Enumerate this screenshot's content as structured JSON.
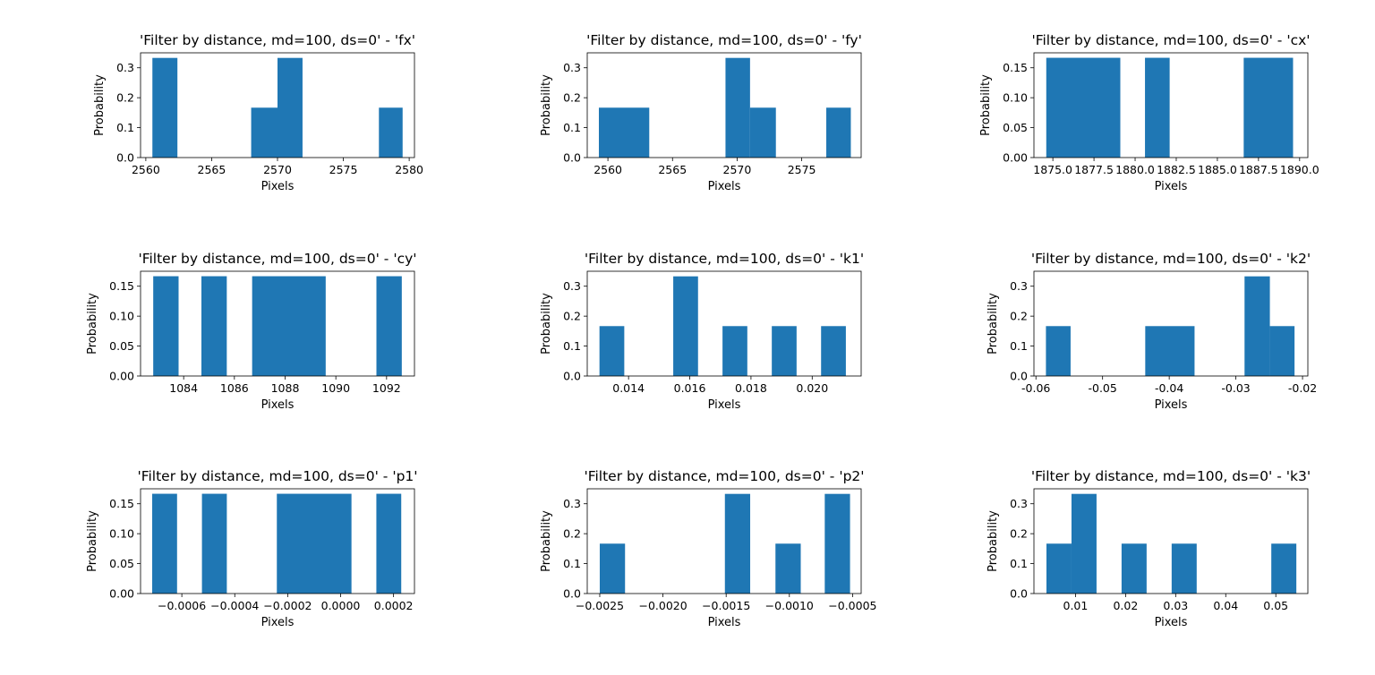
{
  "chart_data": [
    {
      "type": "bar",
      "title": "'Filter by distance, md=100, ds=0' - 'fx'",
      "xlabel": "Pixels",
      "ylabel": "Probability",
      "xlim": [
        2559.6,
        2580.4
      ],
      "ylim": [
        0,
        0.35
      ],
      "xticks": [
        "2560",
        "2565",
        "2570",
        "2575",
        "2580"
      ],
      "xtick_values": [
        2560,
        2565,
        2570,
        2575,
        2580
      ],
      "yticks": [
        "0.0",
        "0.1",
        "0.2",
        "0.3"
      ],
      "ytick_values": [
        0,
        0.1,
        0.2,
        0.3
      ],
      "bins": [
        [
          2560.5,
          2562.4,
          0.333
        ],
        [
          2568.0,
          2570.0,
          0.1667
        ],
        [
          2570.0,
          2571.9,
          0.333
        ],
        [
          2577.7,
          2579.5,
          0.1667
        ]
      ],
      "color": "#1f77b4"
    },
    {
      "type": "bar",
      "title": "'Filter by distance, md=100, ds=0' - 'fy'",
      "xlabel": "Pixels",
      "ylabel": "Probability",
      "xlim": [
        2558.4,
        2579.6
      ],
      "ylim": [
        0,
        0.35
      ],
      "xticks": [
        "2560",
        "2565",
        "2570",
        "2575"
      ],
      "xtick_values": [
        2560,
        2565,
        2570,
        2575
      ],
      "yticks": [
        "0.0",
        "0.1",
        "0.2",
        "0.3"
      ],
      "ytick_values": [
        0,
        0.1,
        0.2,
        0.3
      ],
      "bins": [
        [
          2559.3,
          2563.2,
          0.1667
        ],
        [
          2569.1,
          2571.0,
          0.333
        ],
        [
          2571.0,
          2573.0,
          0.1667
        ],
        [
          2576.9,
          2578.8,
          0.1667
        ]
      ],
      "color": "#1f77b4"
    },
    {
      "type": "bar",
      "title": "'Filter by distance, md=100, ds=0' - 'cx'",
      "xlabel": "Pixels",
      "ylabel": "Probability",
      "xlim": [
        1873.85,
        1890.5
      ],
      "ylim": [
        0,
        0.175
      ],
      "xticks": [
        "1875.0",
        "1877.5",
        "1880.0",
        "1882.5",
        "1885.0",
        "1887.5",
        "1890.0"
      ],
      "xtick_values": [
        1875.0,
        1877.5,
        1880.0,
        1882.5,
        1885.0,
        1887.5,
        1890.0
      ],
      "yticks": [
        "0.00",
        "0.05",
        "0.10",
        "0.15"
      ],
      "ytick_values": [
        0,
        0.05,
        0.1,
        0.15
      ],
      "bins": [
        [
          1874.6,
          1879.1,
          0.1667
        ],
        [
          1880.6,
          1882.1,
          0.1667
        ],
        [
          1886.6,
          1889.6,
          0.1667
        ]
      ],
      "color": "#1f77b4"
    },
    {
      "type": "bar",
      "title": "'Filter by distance, md=100, ds=0' - 'cy'",
      "xlabel": "Pixels",
      "ylabel": "Probability",
      "xlim": [
        1082.3,
        1093.1
      ],
      "ylim": [
        0,
        0.175
      ],
      "xticks": [
        "1084",
        "1086",
        "1088",
        "1090",
        "1092"
      ],
      "xtick_values": [
        1084,
        1086,
        1088,
        1090,
        1092
      ],
      "yticks": [
        "0.00",
        "0.05",
        "0.10",
        "0.15"
      ],
      "ytick_values": [
        0,
        0.05,
        0.1,
        0.15
      ],
      "bins": [
        [
          1082.8,
          1083.8,
          0.1667
        ],
        [
          1084.7,
          1085.7,
          0.1667
        ],
        [
          1086.7,
          1089.6,
          0.1667
        ],
        [
          1091.6,
          1092.6,
          0.1667
        ]
      ],
      "color": "#1f77b4"
    },
    {
      "type": "bar",
      "title": "'Filter by distance, md=100, ds=0' - 'k1'",
      "xlabel": "Pixels",
      "ylabel": "Probability",
      "xlim": [
        0.01265,
        0.0216
      ],
      "ylim": [
        0,
        0.35
      ],
      "xticks": [
        "0.014",
        "0.016",
        "0.018",
        "0.020"
      ],
      "xtick_values": [
        0.014,
        0.016,
        0.018,
        0.02
      ],
      "yticks": [
        "0.0",
        "0.1",
        "0.2",
        "0.3"
      ],
      "ytick_values": [
        0,
        0.1,
        0.2,
        0.3
      ],
      "bins": [
        [
          0.01305,
          0.01386,
          0.1667
        ],
        [
          0.01546,
          0.01627,
          0.333
        ],
        [
          0.01707,
          0.01788,
          0.1667
        ],
        [
          0.01868,
          0.01949,
          0.1667
        ],
        [
          0.02029,
          0.0211,
          0.1667
        ]
      ],
      "color": "#1f77b4"
    },
    {
      "type": "bar",
      "title": "'Filter by distance, md=100, ds=0' - 'k2'",
      "xlabel": "Pixels",
      "ylabel": "Probability",
      "xlim": [
        -0.0603,
        -0.0192
      ],
      "ylim": [
        0,
        0.35
      ],
      "xticks": [
        "-0.06",
        "-0.05",
        "-0.04",
        "-0.03",
        "-0.02"
      ],
      "xtick_values": [
        -0.06,
        -0.05,
        -0.04,
        -0.03,
        -0.02
      ],
      "yticks": [
        "0.0",
        "0.1",
        "0.2",
        "0.3"
      ],
      "ytick_values": [
        0,
        0.1,
        0.2,
        0.3
      ],
      "bins": [
        [
          -0.0585,
          -0.0548,
          0.1667
        ],
        [
          -0.0436,
          -0.0362,
          0.1667
        ],
        [
          -0.0287,
          -0.0249,
          0.333
        ],
        [
          -0.0249,
          -0.0212,
          0.1667
        ]
      ],
      "color": "#1f77b4"
    },
    {
      "type": "bar",
      "title": "'Filter by distance, md=100, ds=0' - 'p1'",
      "xlabel": "Pixels",
      "ylabel": "Probability",
      "xlim": [
        -0.000756,
        0.000279
      ],
      "ylim": [
        0,
        0.175
      ],
      "xticks": [
        "−0.0006",
        "−0.0004",
        "−0.0002",
        "0.0000",
        "0.0002"
      ],
      "xtick_values": [
        -0.0006,
        -0.0004,
        -0.0002,
        0,
        0.0002
      ],
      "yticks": [
        "0.00",
        "0.05",
        "0.10",
        "0.15"
      ],
      "ytick_values": [
        0,
        0.05,
        0.1,
        0.15
      ],
      "bins": [
        [
          -0.000712,
          -0.000618,
          0.1667
        ],
        [
          -0.000524,
          -0.00043,
          0.1667
        ],
        [
          -0.000241,
          4.1e-05,
          0.1667
        ],
        [
          0.000135,
          0.000229,
          0.1667
        ]
      ],
      "color": "#1f77b4"
    },
    {
      "type": "bar",
      "title": "'Filter by distance, md=100, ds=0' - 'p2'",
      "xlabel": "Pixels",
      "ylabel": "Probability",
      "xlim": [
        -0.002599,
        -0.000432
      ],
      "ylim": [
        0,
        0.35
      ],
      "xticks": [
        "−0.0025",
        "−0.0020",
        "−0.0015",
        "−0.0010",
        "−0.0005"
      ],
      "xtick_values": [
        -0.0025,
        -0.002,
        -0.0015,
        -0.001,
        -0.0005
      ],
      "yticks": [
        "0.0",
        "0.1",
        "0.2",
        "0.3"
      ],
      "ytick_values": [
        0,
        0.1,
        0.2,
        0.3
      ],
      "bins": [
        [
          -0.0025,
          -0.0023,
          0.1667
        ],
        [
          -0.00151,
          -0.00131,
          0.333
        ],
        [
          -0.00111,
          -0.00091,
          0.1667
        ],
        [
          -0.00072,
          -0.00052,
          0.333
        ]
      ],
      "color": "#1f77b4"
    },
    {
      "type": "bar",
      "title": "'Filter by distance, md=100, ds=0' - 'k3'",
      "xlabel": "Pixels",
      "ylabel": "Probability",
      "xlim": [
        0.0017,
        0.0564
      ],
      "ylim": [
        0,
        0.35
      ],
      "xticks": [
        "0.01",
        "0.02",
        "0.03",
        "0.04",
        "0.05"
      ],
      "xtick_values": [
        0.01,
        0.02,
        0.03,
        0.04,
        0.05
      ],
      "yticks": [
        "0.0",
        "0.1",
        "0.2",
        "0.3"
      ],
      "ytick_values": [
        0,
        0.1,
        0.2,
        0.3
      ],
      "bins": [
        [
          0.0042,
          0.0092,
          0.1667
        ],
        [
          0.0092,
          0.0142,
          0.333
        ],
        [
          0.0192,
          0.0242,
          0.1667
        ],
        [
          0.0292,
          0.0342,
          0.1667
        ],
        [
          0.0491,
          0.0541,
          0.1667
        ]
      ],
      "color": "#1f77b4"
    }
  ]
}
